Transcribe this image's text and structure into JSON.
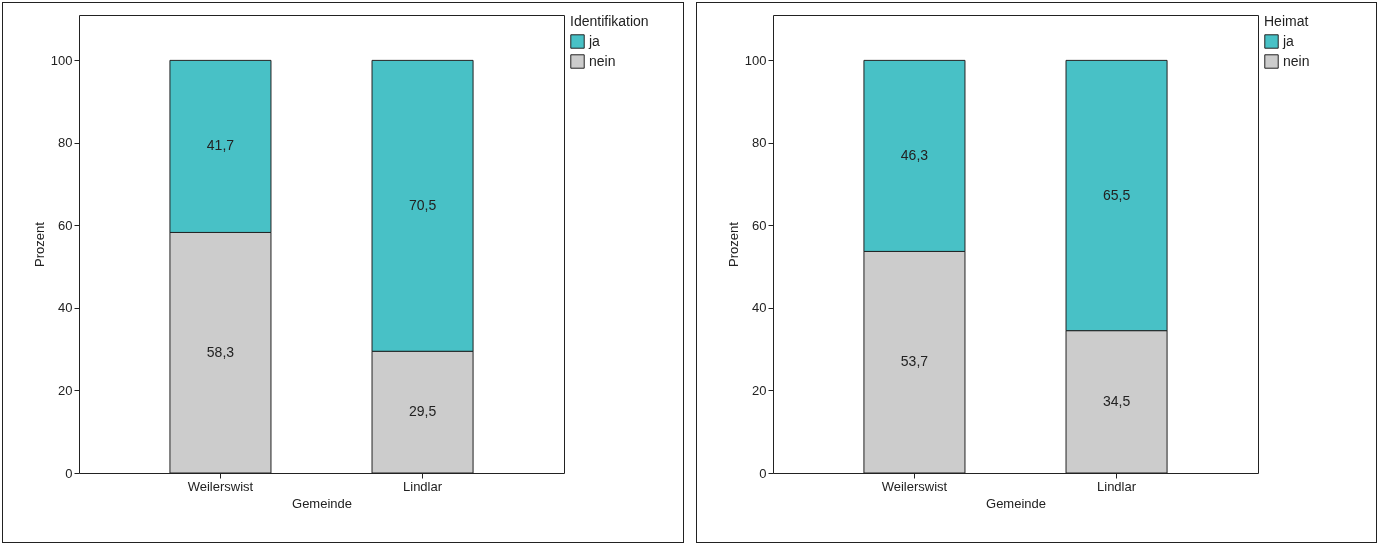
{
  "chart_data": [
    {
      "type": "bar",
      "stacked": true,
      "categories": [
        "Weilerswist",
        "Lindlar"
      ],
      "series": [
        {
          "name": "nein",
          "color": "#cccccc",
          "values": [
            58.3,
            29.5
          ],
          "value_labels": [
            "58,3",
            "29,5"
          ]
        },
        {
          "name": "ja",
          "color": "#48c1c6",
          "values": [
            41.7,
            70.5
          ],
          "value_labels": [
            "41,7",
            "70,5"
          ]
        }
      ],
      "xlabel": "Gemeinde",
      "ylabel": "Prozent",
      "legend_title": "Identifikation",
      "legend": "top right",
      "ylim": [
        0,
        111
      ],
      "yticks": [
        0,
        20,
        40,
        60,
        80,
        100
      ],
      "grid": false
    },
    {
      "type": "bar",
      "stacked": true,
      "categories": [
        "Weilerswist",
        "Lindlar"
      ],
      "series": [
        {
          "name": "nein",
          "color": "#cccccc",
          "values": [
            53.7,
            34.5
          ],
          "value_labels": [
            "53,7",
            "34,5"
          ]
        },
        {
          "name": "ja",
          "color": "#48c1c6",
          "values": [
            46.3,
            65.5
          ],
          "value_labels": [
            "46,3",
            "65,5"
          ]
        }
      ],
      "xlabel": "Gemeinde",
      "ylabel": "Prozent",
      "legend_title": "Heimat",
      "legend": "top right",
      "ylim": [
        0,
        111
      ],
      "yticks": [
        0,
        20,
        40,
        60,
        80,
        100
      ],
      "grid": false
    }
  ]
}
